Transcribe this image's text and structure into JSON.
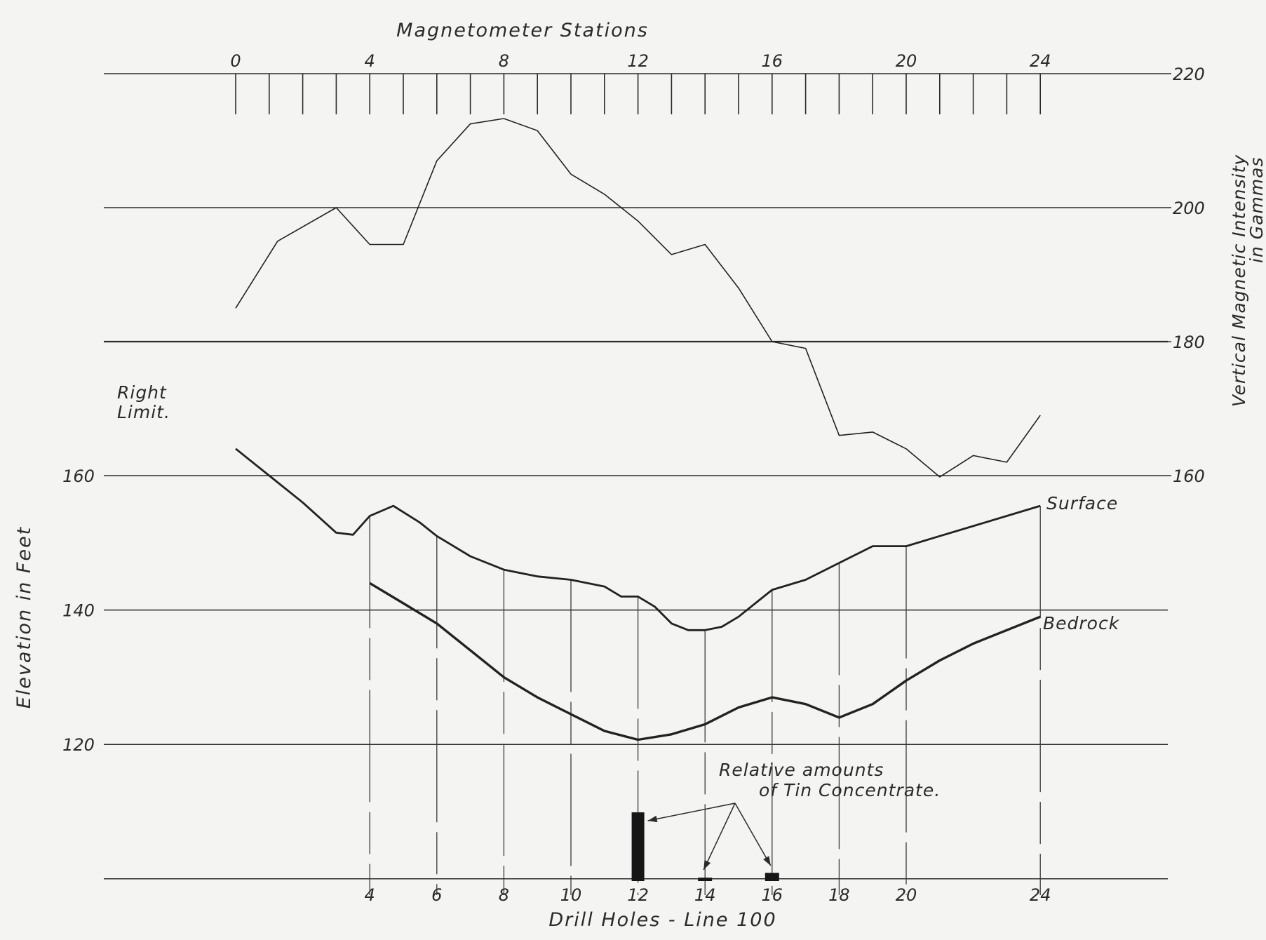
{
  "chart_data": {
    "type": "line",
    "top_title": "Magnetometer Stations",
    "bottom_title": "Drill Holes - Line 100",
    "right_axis_label_line1": "Vertical Magnetic Intensity",
    "right_axis_label_line2": "in Gammas",
    "left_axis_label": "Elevation in Feet",
    "right_limit_label_line1": "Right",
    "right_limit_label_line2": "Limit.",
    "annotation_line1": "Relative amounts",
    "annotation_line2": "of Tin Concentrate.",
    "grid": true,
    "station_ticks": [
      "0",
      "4",
      "8",
      "12",
      "16",
      "20",
      "24"
    ],
    "drill_hole_ticks": [
      "4",
      "6",
      "8",
      "10",
      "12",
      "14",
      "16",
      "18",
      "20",
      "24"
    ],
    "magnetic_axis_ticks": [
      "220",
      "200",
      "180",
      "160"
    ],
    "elevation_axis_ticks": [
      "160",
      "140",
      "120"
    ],
    "magnetic_ylim": [
      160,
      220
    ],
    "elevation_ylim": [
      100,
      160
    ],
    "series": [
      {
        "name": "",
        "axis": "magnetic",
        "x": [
          0,
          1.25,
          3,
          4,
          5,
          6,
          7,
          8,
          9,
          10,
          11,
          12,
          13,
          14,
          15,
          16,
          17,
          18,
          19,
          20,
          21,
          22,
          23,
          24
        ],
        "values": [
          185,
          195,
          200,
          194.5,
          194.5,
          207,
          212.5,
          213.3,
          211.5,
          205,
          202,
          198,
          193,
          194.5,
          188,
          180,
          179,
          166,
          166.5,
          164,
          159.8,
          163,
          162,
          169
        ]
      },
      {
        "name": "Surface",
        "axis": "elevation",
        "x": [
          0,
          1,
          2,
          3,
          3.5,
          4,
          4.7,
          5.5,
          6,
          7,
          8,
          9,
          10,
          11,
          11.5,
          12,
          12.5,
          13,
          13.5,
          14,
          14.5,
          15,
          15.5,
          16,
          17,
          18,
          19,
          20,
          21,
          22,
          23,
          24
        ],
        "values": [
          164,
          160,
          156,
          151.5,
          151.2,
          154,
          155.5,
          153,
          151,
          148,
          146,
          145,
          144.5,
          143.5,
          142,
          142,
          140.5,
          138,
          137,
          137,
          137.5,
          139,
          141,
          143,
          144.5,
          147,
          149.5,
          149.5,
          151,
          152.5,
          154,
          155.5
        ]
      },
      {
        "name": "Bedrock",
        "axis": "elevation",
        "x": [
          4,
          5,
          6,
          7,
          8,
          9,
          10,
          11,
          12,
          13,
          14,
          15,
          16,
          17,
          18,
          19,
          20,
          21,
          22,
          23,
          24
        ],
        "values": [
          144,
          141,
          138,
          134,
          130,
          127,
          124.5,
          122,
          120.7,
          121.5,
          123,
          125.5,
          127,
          126,
          124,
          126,
          129.5,
          132.5,
          135,
          137,
          139
        ]
      }
    ],
    "tin_concentrate": {
      "x": [
        12,
        14,
        16
      ],
      "relative_values": [
        1.0,
        0.05,
        0.12
      ]
    }
  }
}
